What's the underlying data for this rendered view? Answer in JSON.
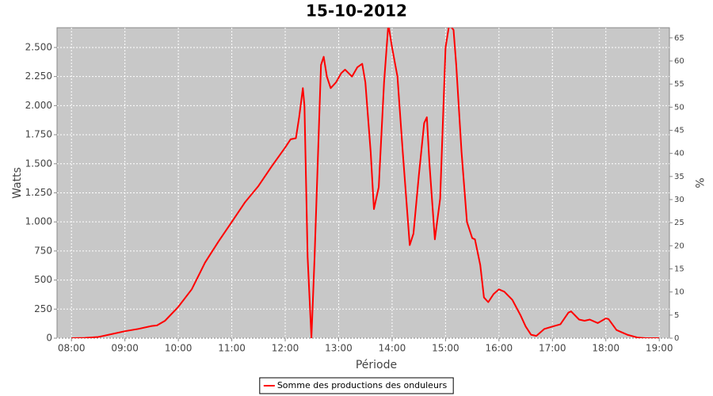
{
  "chart_data": {
    "type": "line",
    "title": "15-10-2012",
    "x_label": "Période",
    "y_label": "Watts",
    "y2_label": "%",
    "x": [
      8.0,
      8.25,
      8.5,
      8.75,
      9.0,
      9.25,
      9.5,
      9.6,
      9.75,
      10.0,
      10.25,
      10.5,
      10.75,
      11.0,
      11.25,
      11.5,
      11.75,
      12.0,
      12.1,
      12.2,
      12.26,
      12.33,
      12.36,
      12.42,
      12.49,
      12.55,
      12.67,
      12.72,
      12.78,
      12.85,
      12.95,
      13.05,
      13.12,
      13.25,
      13.35,
      13.44,
      13.5,
      13.6,
      13.66,
      13.75,
      13.85,
      13.93,
      14.0,
      14.1,
      14.2,
      14.33,
      14.4,
      14.5,
      14.6,
      14.65,
      14.7,
      14.8,
      14.9,
      15.0,
      15.07,
      15.15,
      15.2,
      15.3,
      15.4,
      15.5,
      15.55,
      15.65,
      15.72,
      15.8,
      15.9,
      16.0,
      16.1,
      16.25,
      16.4,
      16.5,
      16.6,
      16.7,
      16.85,
      17.0,
      17.15,
      17.3,
      17.35,
      17.5,
      17.6,
      17.7,
      17.85,
      18.0,
      18.05,
      18.2,
      18.4,
      18.6,
      18.75,
      19.0
    ],
    "series": [
      {
        "name": "Somme des productions des onduleurs",
        "color": "#ff0000",
        "values": [
          0,
          3,
          10,
          35,
          60,
          80,
          105,
          110,
          150,
          270,
          420,
          650,
          830,
          1000,
          1170,
          1310,
          1480,
          1640,
          1710,
          1720,
          1900,
          2150,
          2000,
          700,
          0,
          700,
          2350,
          2420,
          2250,
          2150,
          2200,
          2280,
          2310,
          2250,
          2330,
          2360,
          2200,
          1600,
          1110,
          1300,
          2200,
          2700,
          2500,
          2250,
          1600,
          800,
          900,
          1400,
          1850,
          1900,
          1500,
          850,
          1200,
          2500,
          2700,
          2650,
          2350,
          1600,
          1000,
          860,
          850,
          630,
          350,
          310,
          380,
          420,
          400,
          330,
          200,
          100,
          30,
          20,
          80,
          100,
          120,
          220,
          230,
          160,
          150,
          160,
          130,
          170,
          165,
          70,
          30,
          5,
          0,
          0
        ]
      }
    ],
    "xlim": [
      7.73,
      19.19
    ],
    "xticks": [
      {
        "value": 8,
        "label": "08:00"
      },
      {
        "value": 9,
        "label": "09:00"
      },
      {
        "value": 10,
        "label": "10:00"
      },
      {
        "value": 11,
        "label": "11:00"
      },
      {
        "value": 12,
        "label": "12:00"
      },
      {
        "value": 13,
        "label": "13:00"
      },
      {
        "value": 14,
        "label": "14:00"
      },
      {
        "value": 15,
        "label": "15:00"
      },
      {
        "value": 16,
        "label": "16:00"
      },
      {
        "value": 17,
        "label": "17:00"
      },
      {
        "value": 18,
        "label": "18:00"
      },
      {
        "value": 19,
        "label": "19:00"
      }
    ],
    "ylim": [
      0,
      2670
    ],
    "yticks": [
      0,
      250,
      500,
      750,
      {
        "value": 1000,
        "label": "1.000"
      },
      {
        "value": 1250,
        "label": "1.250"
      },
      {
        "value": 1500,
        "label": "1.500"
      },
      {
        "value": 1750,
        "label": "1.750"
      },
      {
        "value": 2000,
        "label": "2.000"
      },
      {
        "value": 2250,
        "label": "2.250"
      },
      {
        "value": 2500,
        "label": "2.500"
      }
    ],
    "y2lim": [
      0,
      67.2
    ],
    "y2ticks": [
      0,
      5,
      10,
      15,
      20,
      25,
      30,
      35,
      40,
      45,
      50,
      55,
      60,
      65
    ],
    "grid": true,
    "legend": "bottom"
  }
}
